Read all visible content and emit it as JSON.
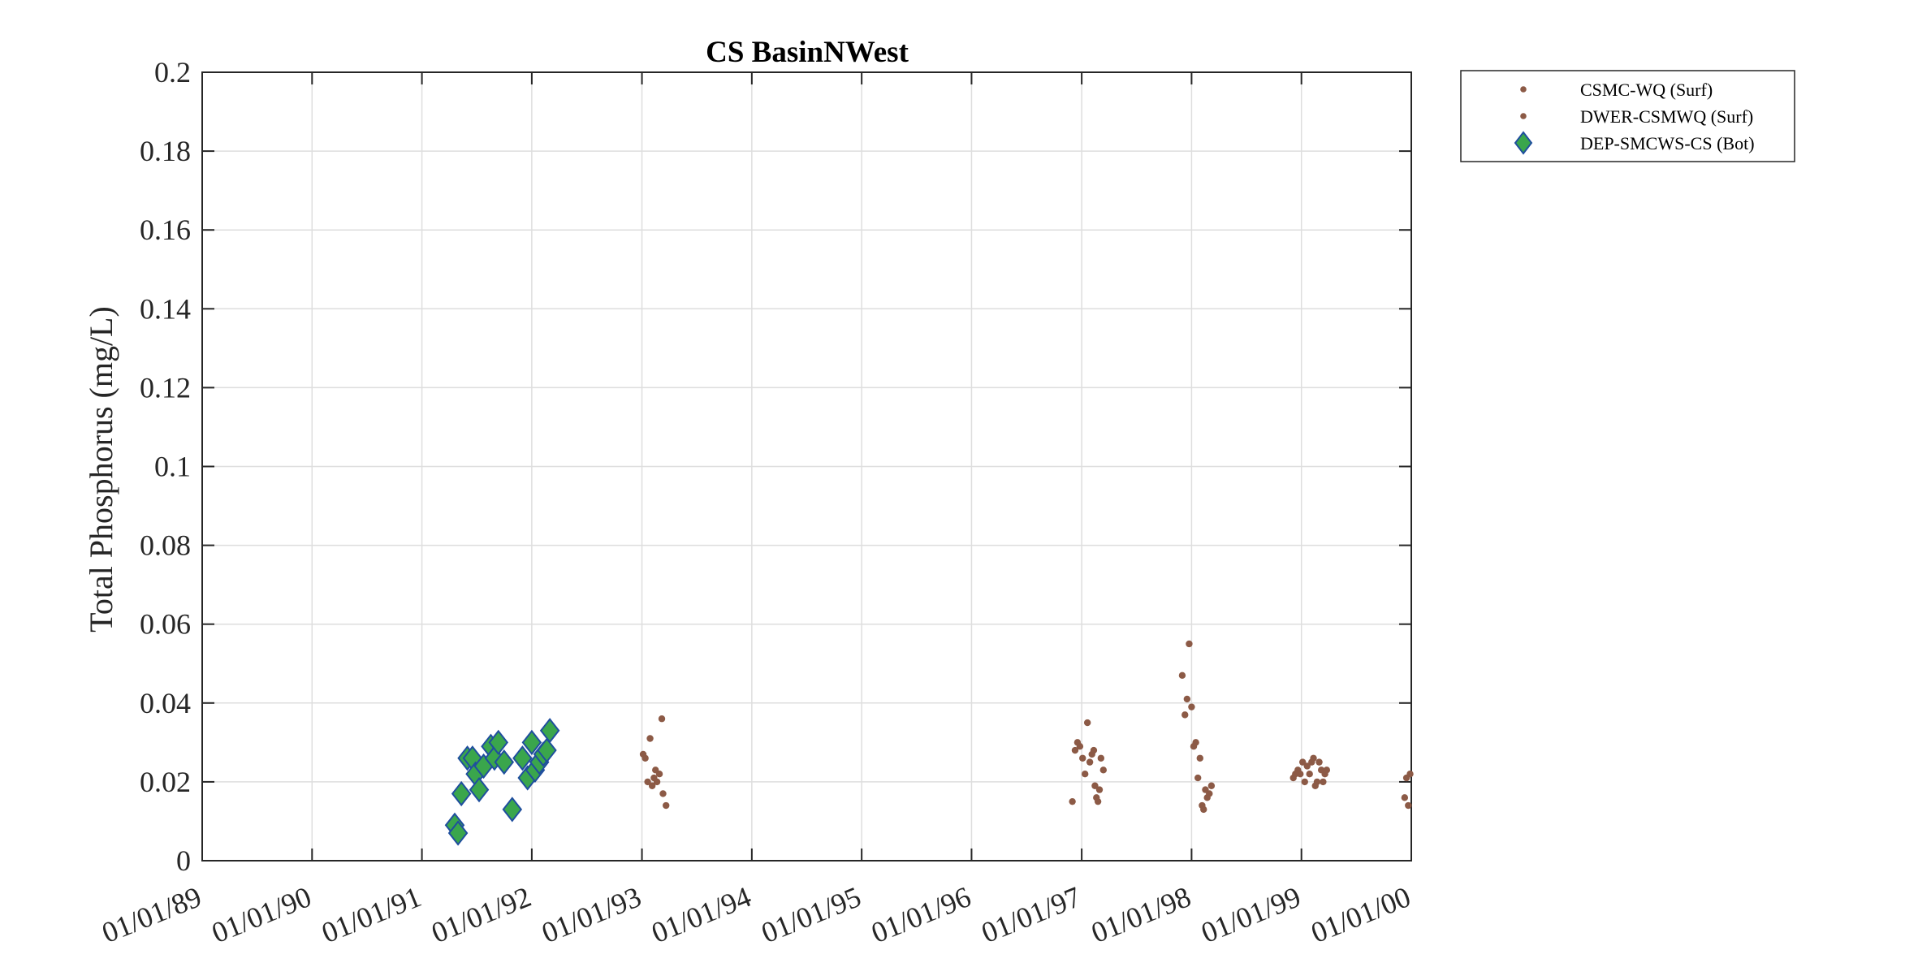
{
  "chart_data": {
    "type": "scatter",
    "title": "CS BasinNWest",
    "ylabel": "Total Phosphorus (mg/L)",
    "xlabel": "",
    "xlim": [
      "1989-01-01",
      "2000-01-01"
    ],
    "ylim": [
      0,
      0.2
    ],
    "grid": true,
    "legend_position": "outside-top-right",
    "x_tick_labels": [
      "01/01/89",
      "01/01/90",
      "01/01/91",
      "01/01/92",
      "01/01/93",
      "01/01/94",
      "01/01/95",
      "01/01/96",
      "01/01/97",
      "01/01/98",
      "01/01/99",
      "01/01/00"
    ],
    "x_tick_dates": [
      "1989-01-01",
      "1990-01-01",
      "1991-01-01",
      "1992-01-01",
      "1993-01-01",
      "1994-01-01",
      "1995-01-01",
      "1996-01-01",
      "1997-01-01",
      "1998-01-01",
      "1999-01-01",
      "2000-01-01"
    ],
    "y_ticks": [
      0,
      0.02,
      0.04,
      0.06,
      0.08,
      0.1,
      0.12,
      0.14,
      0.16,
      0.18,
      0.2
    ],
    "y_tick_labels": [
      "0",
      "0.02",
      "0.04",
      "0.06",
      "0.08",
      "0.1",
      "0.12",
      "0.14",
      "0.16",
      "0.18",
      "0.2"
    ],
    "series": [
      {
        "name": "CSMC-WQ (Surf)",
        "marker": "dot",
        "color": "#8c5a46",
        "points": []
      },
      {
        "name": "DWER-CSMWQ (Surf)",
        "marker": "dot",
        "color": "#8c5a46",
        "points": [
          [
            "1993-01-05",
            0.027
          ],
          [
            "1993-01-12",
            0.026
          ],
          [
            "1993-01-20",
            0.02
          ],
          [
            "1993-01-28",
            0.031
          ],
          [
            "1993-02-04",
            0.019
          ],
          [
            "1993-02-10",
            0.021
          ],
          [
            "1993-02-15",
            0.023
          ],
          [
            "1993-02-20",
            0.02
          ],
          [
            "1993-02-28",
            0.022
          ],
          [
            "1993-03-08",
            0.036
          ],
          [
            "1993-03-12",
            0.017
          ],
          [
            "1993-03-22",
            0.014
          ],
          [
            "1996-12-01",
            0.015
          ],
          [
            "1996-12-10",
            0.028
          ],
          [
            "1996-12-18",
            0.03
          ],
          [
            "1996-12-26",
            0.029
          ],
          [
            "1997-01-04",
            0.026
          ],
          [
            "1997-01-12",
            0.022
          ],
          [
            "1997-01-20",
            0.035
          ],
          [
            "1997-01-28",
            0.025
          ],
          [
            "1997-02-04",
            0.027
          ],
          [
            "1997-02-10",
            0.028
          ],
          [
            "1997-02-14",
            0.019
          ],
          [
            "1997-02-19",
            0.016
          ],
          [
            "1997-02-24",
            0.015
          ],
          [
            "1997-03-01",
            0.018
          ],
          [
            "1997-03-06",
            0.026
          ],
          [
            "1997-03-14",
            0.023
          ],
          [
            "1997-12-01",
            0.047
          ],
          [
            "1997-12-10",
            0.037
          ],
          [
            "1997-12-17",
            0.041
          ],
          [
            "1997-12-24",
            0.055
          ],
          [
            "1998-01-01",
            0.039
          ],
          [
            "1998-01-08",
            0.029
          ],
          [
            "1998-01-15",
            0.03
          ],
          [
            "1998-01-22",
            0.021
          ],
          [
            "1998-01-29",
            0.026
          ],
          [
            "1998-02-05",
            0.014
          ],
          [
            "1998-02-10",
            0.013
          ],
          [
            "1998-02-16",
            0.018
          ],
          [
            "1998-02-22",
            0.016
          ],
          [
            "1998-03-01",
            0.017
          ],
          [
            "1998-03-08",
            0.019
          ],
          [
            "1998-12-05",
            0.021
          ],
          [
            "1998-12-12",
            0.022
          ],
          [
            "1998-12-20",
            0.023
          ],
          [
            "1998-12-28",
            0.022
          ],
          [
            "1999-01-05",
            0.025
          ],
          [
            "1999-01-12",
            0.02
          ],
          [
            "1999-01-20",
            0.024
          ],
          [
            "1999-01-28",
            0.022
          ],
          [
            "1999-02-04",
            0.025
          ],
          [
            "1999-02-10",
            0.026
          ],
          [
            "1999-02-16",
            0.019
          ],
          [
            "1999-02-22",
            0.02
          ],
          [
            "1999-03-01",
            0.025
          ],
          [
            "1999-03-08",
            0.023
          ],
          [
            "1999-03-14",
            0.02
          ],
          [
            "1999-03-20",
            0.022
          ],
          [
            "1999-03-26",
            0.023
          ],
          [
            "1999-12-10",
            0.016
          ],
          [
            "1999-12-16",
            0.021
          ],
          [
            "1999-12-22",
            0.014
          ],
          [
            "1999-12-28",
            0.022
          ]
        ]
      },
      {
        "name": "DEP-SMCWS-CS (Bot)",
        "marker": "diamond",
        "color": "#3aa64c",
        "edge_color": "#1f4e9e",
        "points": [
          [
            "1991-04-20",
            0.009
          ],
          [
            "1991-05-01",
            0.007
          ],
          [
            "1991-05-12",
            0.017
          ],
          [
            "1991-06-01",
            0.026
          ],
          [
            "1991-06-18",
            0.026
          ],
          [
            "1991-06-28",
            0.022
          ],
          [
            "1991-07-10",
            0.018
          ],
          [
            "1991-07-25",
            0.024
          ],
          [
            "1991-08-18",
            0.029
          ],
          [
            "1991-08-30",
            0.026
          ],
          [
            "1991-09-12",
            0.03
          ],
          [
            "1991-10-01",
            0.025
          ],
          [
            "1991-10-28",
            0.013
          ],
          [
            "1991-12-01",
            0.026
          ],
          [
            "1991-12-18",
            0.021
          ],
          [
            "1992-01-01",
            0.03
          ],
          [
            "1992-01-12",
            0.023
          ],
          [
            "1992-01-26",
            0.025
          ],
          [
            "1992-02-08",
            0.027
          ],
          [
            "1992-02-20",
            0.028
          ],
          [
            "1992-03-01",
            0.033
          ]
        ]
      }
    ]
  }
}
